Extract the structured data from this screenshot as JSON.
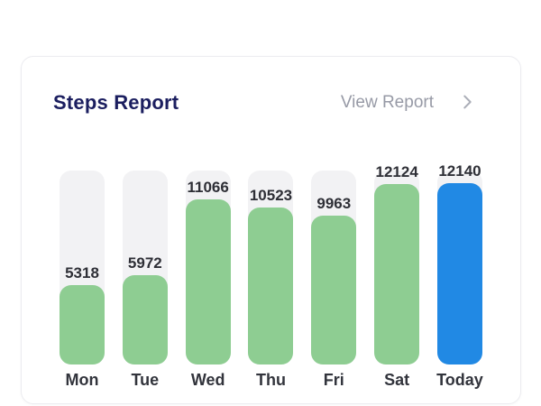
{
  "card": {
    "title": "Steps Report",
    "view_report_label": "View Report"
  },
  "chart_data": {
    "type": "bar",
    "title": "Steps Report",
    "categories": [
      "Mon",
      "Tue",
      "Wed",
      "Thu",
      "Fri",
      "Sat",
      "Today"
    ],
    "values": [
      5318,
      5972,
      11066,
      10523,
      9963,
      12124,
      12140
    ],
    "xlabel": "",
    "ylabel": "",
    "ylim": [
      0,
      13000
    ],
    "grid": false,
    "legend": false,
    "data_labels": true,
    "highlight_category": "Today",
    "colors": {
      "bar": "#8ecd92",
      "highlight_bar": "#2189e4",
      "track": "#f2f2f4",
      "value_label": "#2e2f36",
      "day_label": "#32343c",
      "title": "#1b1e5f",
      "link": "#979aa6",
      "chevron": "#abaeb8"
    }
  }
}
